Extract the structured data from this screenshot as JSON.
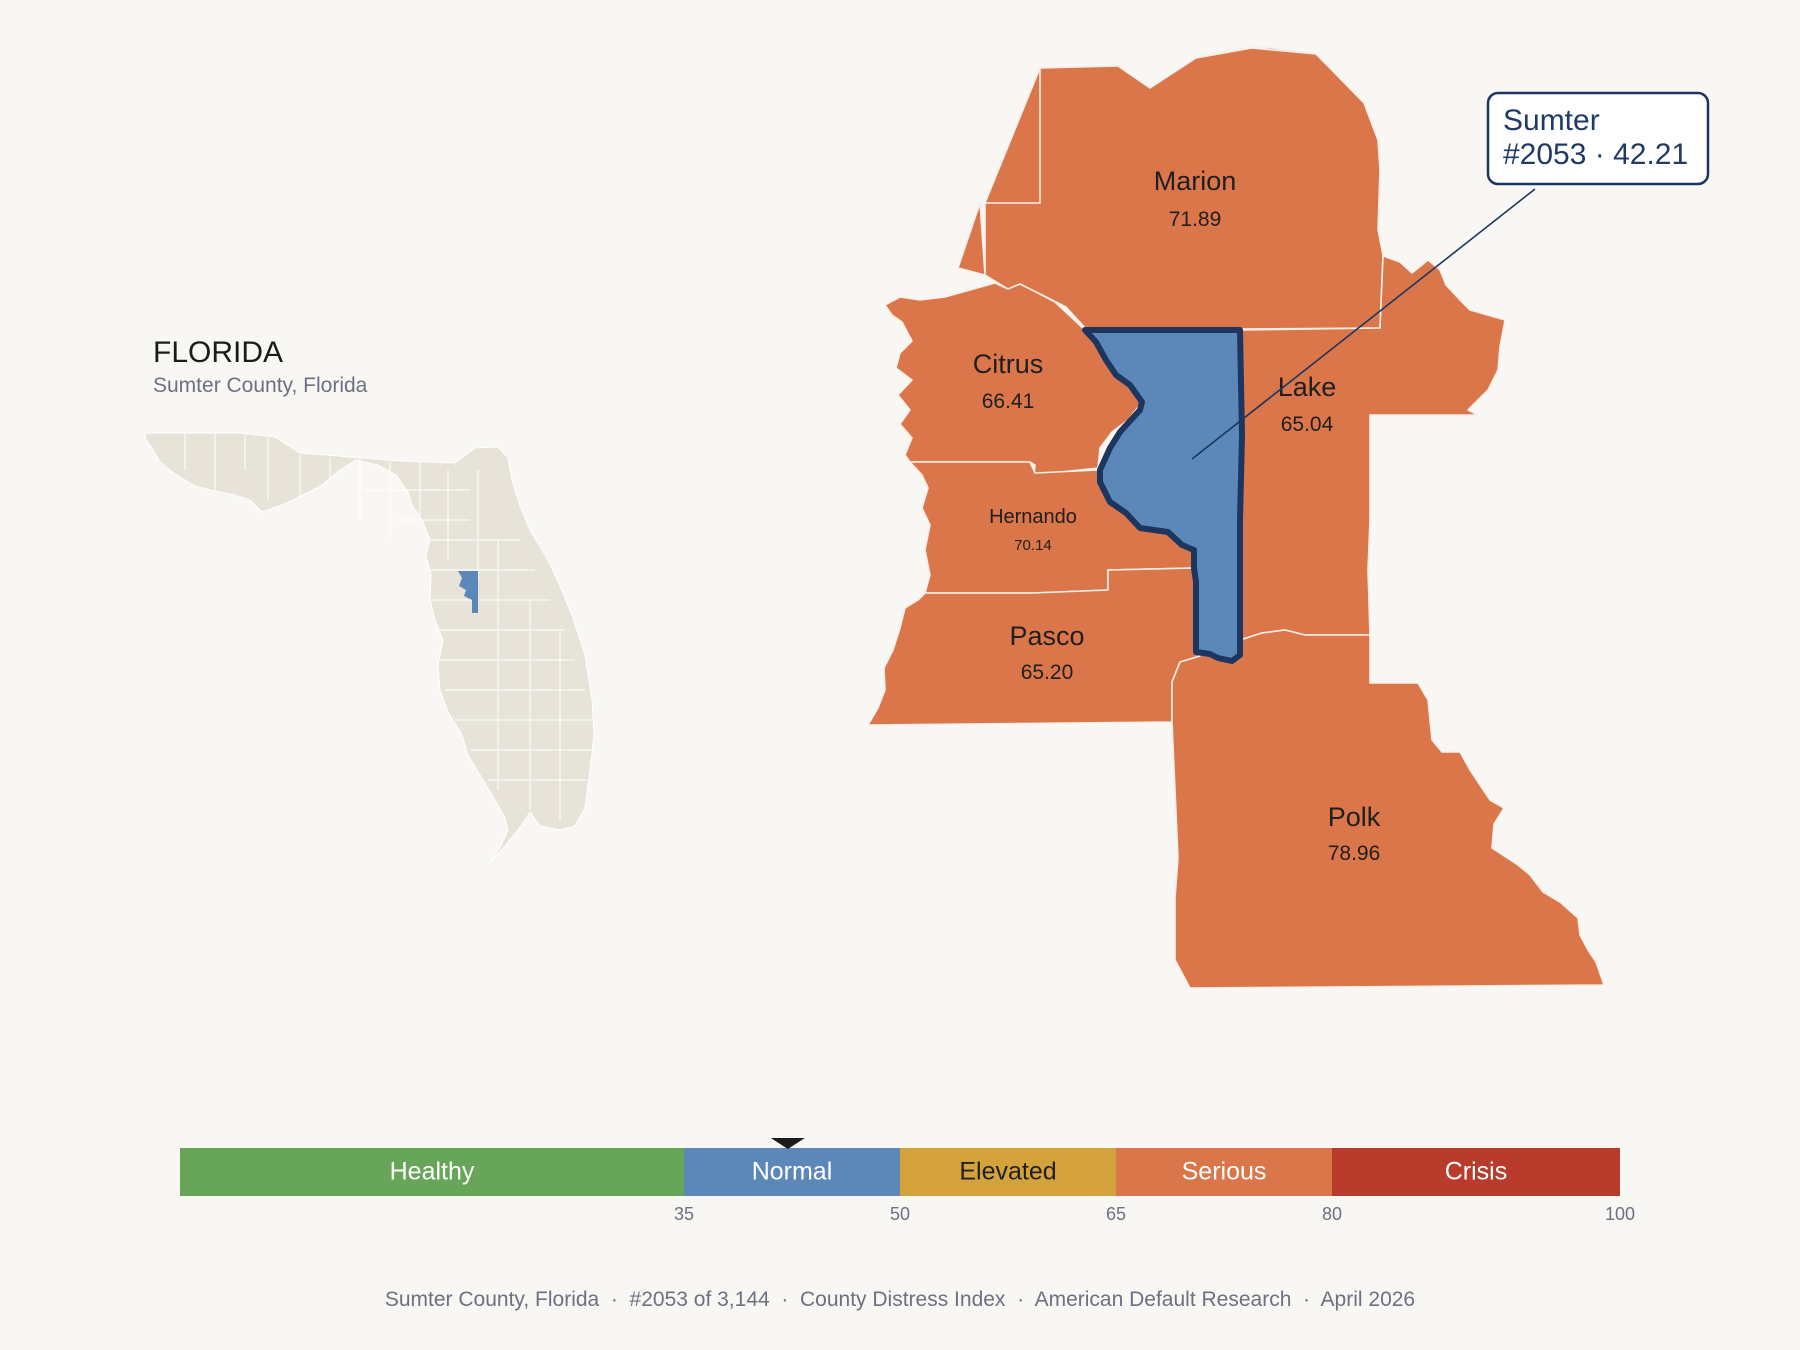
{
  "state": {
    "name": "FLORIDA",
    "subtitle": "Sumter County, Florida"
  },
  "colors": {
    "healthy": "#67a659",
    "normal": "#5b88b9",
    "elevated": "#d4a23a",
    "serious": "#da7649",
    "crisis": "#b93b2c",
    "inset_land": "#e8e3d8",
    "highlight_border": "#1c3660"
  },
  "counties": [
    {
      "id": "marion",
      "name": "Marion",
      "value": "71.89",
      "category": "serious"
    },
    {
      "id": "citrus",
      "name": "Citrus",
      "value": "66.41",
      "category": "serious"
    },
    {
      "id": "lake",
      "name": "Lake",
      "value": "65.04",
      "category": "serious"
    },
    {
      "id": "hernando",
      "name": "Hernando",
      "value": "70.14",
      "category": "serious"
    },
    {
      "id": "pasco",
      "name": "Pasco",
      "value": "65.20",
      "category": "serious"
    },
    {
      "id": "polk",
      "name": "Polk",
      "value": "78.96",
      "category": "serious"
    },
    {
      "id": "sumter",
      "name": "Sumter",
      "value": "42.21",
      "category": "normal",
      "highlighted": true
    }
  ],
  "callout": {
    "line1": "Sumter",
    "line2": "#2053 · 42.21"
  },
  "scale": {
    "min": 0,
    "max": 100,
    "current_value": 42.21,
    "segments": [
      {
        "label": "Healthy",
        "from": 0,
        "to": 35,
        "color_key": "healthy"
      },
      {
        "label": "Normal",
        "from": 35,
        "to": 50,
        "color_key": "normal"
      },
      {
        "label": "Elevated",
        "from": 50,
        "to": 65,
        "color_key": "elevated"
      },
      {
        "label": "Serious",
        "from": 65,
        "to": 80,
        "color_key": "serious"
      },
      {
        "label": "Crisis",
        "from": 80,
        "to": 100,
        "color_key": "crisis"
      }
    ],
    "ticks": [
      "35",
      "50",
      "65",
      "80",
      "100"
    ]
  },
  "footer": "Sumter County, Florida  ·  #2053 of 3,144  ·  County Distress Index  ·  American Default Research  ·  April 2026"
}
